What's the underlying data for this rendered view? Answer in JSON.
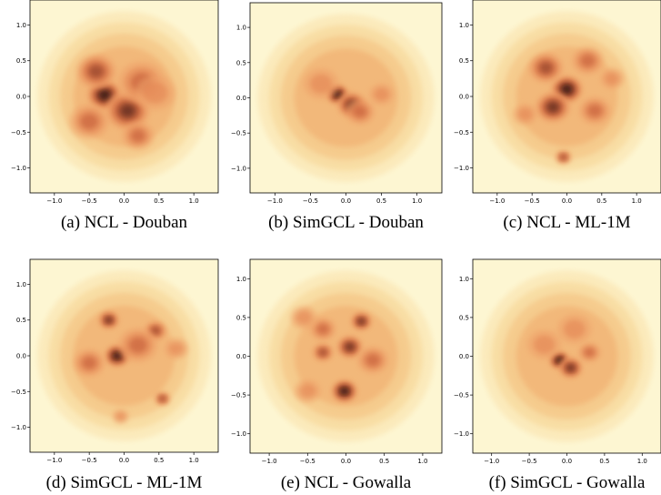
{
  "chart_data": [
    {
      "type": "heatmap",
      "caption": "(a) NCL - Douban",
      "xticks": [
        "−1.0",
        "−0.5",
        "0.0",
        "0.5",
        "1.0"
      ],
      "yticks": [
        "1.0",
        "0.5",
        "0.0",
        "−0.5",
        "−1.0"
      ],
      "xlim": [
        -1.35,
        1.35
      ],
      "ylim": [
        -1.35,
        1.35
      ],
      "density_peaks": [
        {
          "x": -0.28,
          "y": 0.02,
          "strength": 1.0,
          "spread": 0.22
        },
        {
          "x": -0.4,
          "y": 0.35,
          "strength": 0.7,
          "spread": 0.25
        },
        {
          "x": 0.05,
          "y": -0.2,
          "strength": 0.75,
          "spread": 0.28
        },
        {
          "x": 0.25,
          "y": 0.2,
          "strength": 0.5,
          "spread": 0.3
        },
        {
          "x": 0.2,
          "y": -0.55,
          "strength": 0.45,
          "spread": 0.2
        },
        {
          "x": -0.5,
          "y": -0.35,
          "strength": 0.45,
          "spread": 0.25
        },
        {
          "x": 0.45,
          "y": 0.05,
          "strength": 0.35,
          "spread": 0.25
        }
      ]
    },
    {
      "type": "heatmap",
      "caption": "(b) SimGCL - Douban",
      "xticks": [
        "−1.0",
        "−0.5",
        "0.0",
        "0.5",
        "1.0"
      ],
      "yticks": [
        "1.0",
        "0.5",
        "0.0",
        "−0.5",
        "−1.0"
      ],
      "xlim": [
        -1.35,
        1.35
      ],
      "ylim": [
        -1.35,
        1.35
      ],
      "density_peaks": [
        {
          "x": -0.12,
          "y": 0.05,
          "strength": 1.0,
          "spread": 0.14
        },
        {
          "x": 0.08,
          "y": -0.1,
          "strength": 0.75,
          "spread": 0.18
        },
        {
          "x": 0.2,
          "y": -0.2,
          "strength": 0.5,
          "spread": 0.18
        },
        {
          "x": -0.35,
          "y": 0.2,
          "strength": 0.35,
          "spread": 0.22
        },
        {
          "x": 0.5,
          "y": 0.05,
          "strength": 0.3,
          "spread": 0.15
        }
      ]
    },
    {
      "type": "heatmap",
      "caption": "(c) NCL - ML-1M",
      "xticks": [
        "−1.0",
        "−0.5",
        "0.0",
        "0.5",
        "1.0"
      ],
      "yticks": [
        "1.0",
        "0.5",
        "0.0",
        "−0.5",
        "−1.0"
      ],
      "xlim": [
        -1.35,
        1.35
      ],
      "ylim": [
        -1.35,
        1.35
      ],
      "density_peaks": [
        {
          "x": 0.0,
          "y": 0.1,
          "strength": 1.0,
          "spread": 0.2
        },
        {
          "x": -0.2,
          "y": -0.15,
          "strength": 0.8,
          "spread": 0.22
        },
        {
          "x": -0.3,
          "y": 0.4,
          "strength": 0.6,
          "spread": 0.22
        },
        {
          "x": 0.3,
          "y": 0.5,
          "strength": 0.55,
          "spread": 0.2
        },
        {
          "x": 0.4,
          "y": -0.2,
          "strength": 0.5,
          "spread": 0.2
        },
        {
          "x": -0.05,
          "y": -0.85,
          "strength": 0.65,
          "spread": 0.1
        },
        {
          "x": -0.6,
          "y": -0.25,
          "strength": 0.4,
          "spread": 0.15
        },
        {
          "x": 0.65,
          "y": 0.25,
          "strength": 0.4,
          "spread": 0.15
        }
      ]
    },
    {
      "type": "heatmap",
      "caption": "(d) SimGCL - ML-1M",
      "xticks": [
        "−1.0",
        "−0.5",
        "0.0",
        "0.5",
        "1.0"
      ],
      "yticks": [
        "1.0",
        "0.5",
        "0.0",
        "−0.5",
        "−1.0"
      ],
      "xlim": [
        -1.35,
        1.35
      ],
      "ylim": [
        -1.35,
        1.35
      ],
      "density_peaks": [
        {
          "x": -0.1,
          "y": 0.0,
          "strength": 1.0,
          "spread": 0.16
        },
        {
          "x": -0.22,
          "y": 0.5,
          "strength": 0.8,
          "spread": 0.13
        },
        {
          "x": 0.45,
          "y": 0.35,
          "strength": 0.7,
          "spread": 0.14
        },
        {
          "x": 0.55,
          "y": -0.6,
          "strength": 0.65,
          "spread": 0.1
        },
        {
          "x": 0.2,
          "y": 0.15,
          "strength": 0.5,
          "spread": 0.25
        },
        {
          "x": -0.5,
          "y": -0.1,
          "strength": 0.45,
          "spread": 0.2
        },
        {
          "x": -0.05,
          "y": -0.85,
          "strength": 0.4,
          "spread": 0.1
        },
        {
          "x": 0.75,
          "y": 0.1,
          "strength": 0.35,
          "spread": 0.15
        }
      ]
    },
    {
      "type": "heatmap",
      "caption": "(e) NCL - Gowalla",
      "xticks": [
        "−1.0",
        "−0.5",
        "0.0",
        "0.5",
        "1.0"
      ],
      "yticks": [
        "1.0",
        "0.5",
        "0.0",
        "−0.5",
        "−1.0"
      ],
      "xlim": [
        -1.25,
        1.25
      ],
      "ylim": [
        -1.25,
        1.25
      ],
      "density_peaks": [
        {
          "x": -0.02,
          "y": -0.45,
          "strength": 1.0,
          "spread": 0.15
        },
        {
          "x": 0.05,
          "y": 0.12,
          "strength": 0.85,
          "spread": 0.15
        },
        {
          "x": 0.2,
          "y": 0.45,
          "strength": 0.75,
          "spread": 0.12
        },
        {
          "x": -0.3,
          "y": 0.05,
          "strength": 0.65,
          "spread": 0.12
        },
        {
          "x": -0.3,
          "y": 0.35,
          "strength": 0.45,
          "spread": 0.15
        },
        {
          "x": 0.35,
          "y": -0.05,
          "strength": 0.45,
          "spread": 0.18
        },
        {
          "x": -0.5,
          "y": -0.45,
          "strength": 0.35,
          "spread": 0.15
        },
        {
          "x": -0.55,
          "y": 0.5,
          "strength": 0.25,
          "spread": 0.15
        }
      ]
    },
    {
      "type": "heatmap",
      "caption": "(f) SimGCL - Gowalla",
      "xticks": [
        "−1.0",
        "−0.5",
        "0.0",
        "0.5",
        "1.0"
      ],
      "yticks": [
        "1.0",
        "0.5",
        "0.0",
        "−0.5",
        "−1.0"
      ],
      "xlim": [
        -1.25,
        1.25
      ],
      "ylim": [
        -1.25,
        1.25
      ],
      "density_peaks": [
        {
          "x": -0.1,
          "y": -0.05,
          "strength": 1.0,
          "spread": 0.12
        },
        {
          "x": 0.05,
          "y": -0.15,
          "strength": 0.8,
          "spread": 0.14
        },
        {
          "x": 0.3,
          "y": 0.05,
          "strength": 0.55,
          "spread": 0.13
        },
        {
          "x": -0.3,
          "y": 0.15,
          "strength": 0.35,
          "spread": 0.2
        },
        {
          "x": 0.1,
          "y": 0.35,
          "strength": 0.25,
          "spread": 0.2
        }
      ]
    }
  ]
}
